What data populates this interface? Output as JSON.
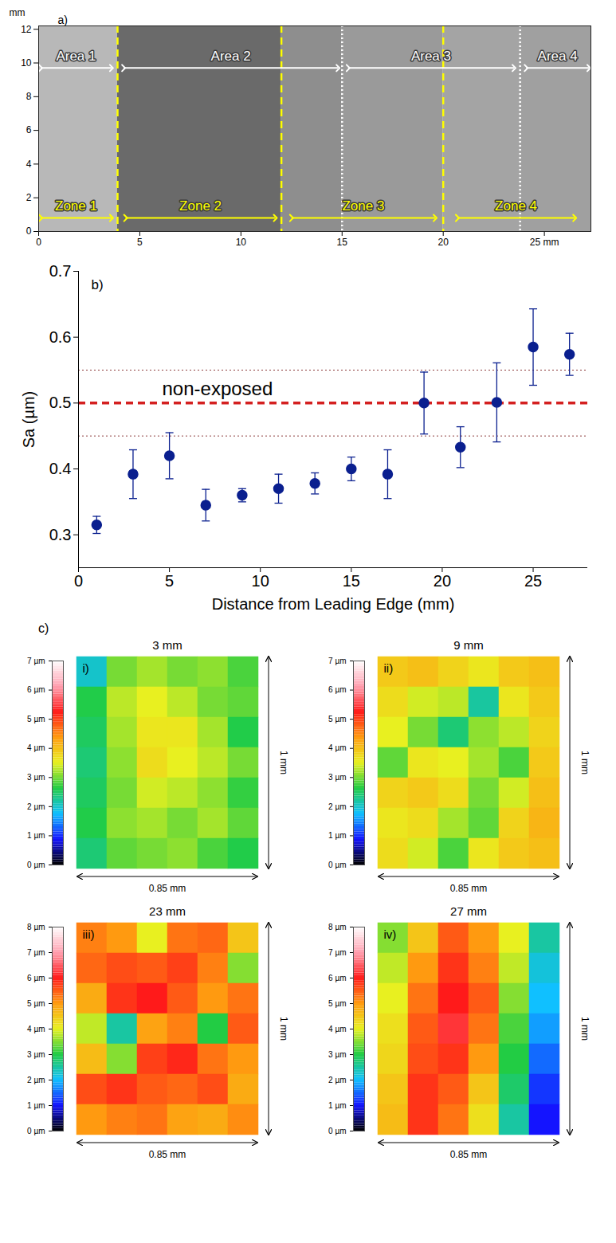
{
  "chart_data": [
    {
      "type": "overlay",
      "panel": "a)",
      "ylabel": "mm",
      "xlim": [
        0,
        27.3
      ],
      "ylim": [
        0,
        12.2
      ],
      "xticks": [
        0,
        5,
        10,
        15,
        20,
        {
          "value": 25,
          "label": "25 mm"
        }
      ],
      "yticks": [
        0,
        2,
        4,
        6,
        8,
        10,
        12
      ],
      "boundaries": [
        {
          "x": 3.9,
          "line_style": "dashed",
          "color": "#ffff00"
        },
        {
          "x": 12.0,
          "line_style": "dashed",
          "color": "#ffff00"
        },
        {
          "x": 15.0,
          "line_style": "dotted",
          "color": "#ffffff"
        },
        {
          "x": 20.0,
          "line_style": "dashed",
          "color": "#ffff00"
        },
        {
          "x": 23.8,
          "line_style": "dotted",
          "color": "#ffffff"
        }
      ],
      "spans": [
        {
          "name": "Area 1",
          "from": 0.1,
          "to": 3.6,
          "y": 9.7,
          "color": "#ffffff"
        },
        {
          "name": "Area 2",
          "from": 4.2,
          "to": 14.8,
          "y": 9.7,
          "color": "#ffffff"
        },
        {
          "name": "Area 3",
          "from": 15.3,
          "to": 23.5,
          "y": 9.7,
          "color": "#ffffff"
        },
        {
          "name": "Area 4",
          "from": 24.1,
          "to": 27.2,
          "y": 9.7,
          "color": "#ffffff"
        },
        {
          "name": "Zone 1",
          "from": 0.1,
          "to": 3.6,
          "y": 0.8,
          "color": "#ffff00"
        },
        {
          "name": "Zone 2",
          "from": 4.3,
          "to": 11.7,
          "y": 0.8,
          "color": "#ffff00"
        },
        {
          "name": "Zone 3",
          "from": 12.5,
          "to": 19.6,
          "y": 0.8,
          "color": "#ffff00"
        },
        {
          "name": "Zone 4",
          "from": 20.7,
          "to": 26.5,
          "y": 0.8,
          "color": "#ffff00"
        }
      ]
    },
    {
      "type": "scatter",
      "panel": "b)",
      "xlabel": "Distance from Leading Edge (mm)",
      "ylabel": "Sa (µm)",
      "xlim": [
        0,
        28
      ],
      "ylim": [
        0.25,
        0.7
      ],
      "xticks": [
        0,
        5,
        10,
        15,
        20,
        25
      ],
      "yticks": [
        0.3,
        0.4,
        0.5,
        0.6,
        0.7
      ],
      "x": [
        1,
        3,
        5,
        7,
        9,
        11,
        13,
        15,
        17,
        19,
        21,
        23,
        25,
        27
      ],
      "values": [
        0.315,
        0.392,
        0.42,
        0.345,
        0.36,
        0.37,
        0.378,
        0.4,
        0.392,
        0.5,
        0.433,
        0.501,
        0.585,
        0.574
      ],
      "errors": [
        0.013,
        0.037,
        0.035,
        0.024,
        0.01,
        0.022,
        0.016,
        0.018,
        0.037,
        0.047,
        0.031,
        0.06,
        0.058,
        0.032
      ],
      "color": "#0a1f8f",
      "marker": "circle",
      "reference_lines": [
        {
          "y": 0.5,
          "label": "non-exposed",
          "color": "#d42020",
          "line_style": "dashed"
        },
        {
          "y": 0.45,
          "color": "#8b3a3a",
          "line_style": "dotted"
        },
        {
          "y": 0.55,
          "color": "#8b3a3a",
          "line_style": "dotted"
        }
      ]
    },
    {
      "type": "heatmap",
      "group_label": "c)",
      "panel": "i)",
      "title": "3 mm",
      "height_label": "1 mm",
      "width_label": "0.85 mm",
      "tick_labels": false,
      "cells": [
        [
          2.0,
          3.0,
          3.2,
          3.0,
          3.1,
          2.8
        ],
        [
          2.6,
          3.3,
          3.5,
          3.3,
          3.0,
          2.9
        ],
        [
          2.5,
          3.2,
          3.6,
          3.6,
          3.2,
          2.6
        ],
        [
          2.4,
          3.1,
          3.7,
          3.5,
          3.3,
          3.0
        ],
        [
          2.5,
          3.0,
          3.4,
          3.3,
          3.1,
          2.7
        ],
        [
          2.6,
          3.1,
          3.2,
          3.0,
          3.2,
          2.9
        ],
        [
          2.4,
          2.9,
          3.0,
          3.1,
          2.8,
          2.6
        ]
      ],
      "colorbar": {
        "range": [
          0,
          7
        ],
        "ticks": [
          {
            "value": 0,
            "label": "0 µm"
          },
          {
            "value": 1,
            "label": "1 µm"
          },
          {
            "value": 2,
            "label": "2 µm"
          },
          {
            "value": 3,
            "label": "3 µm"
          },
          {
            "value": 4,
            "label": "4 µm"
          },
          {
            "value": 5,
            "label": "5 µm"
          },
          {
            "value": 6,
            "label": "6 µm"
          },
          {
            "value": 7,
            "label": "7 µm"
          }
        ]
      }
    },
    {
      "type": "heatmap",
      "panel": "ii)",
      "title": "9 mm",
      "height_label": "1 mm",
      "width_label": "0.85 mm",
      "tick_labels": false,
      "cells": [
        [
          3.9,
          4.0,
          3.8,
          3.6,
          3.9,
          4.0
        ],
        [
          3.7,
          3.4,
          3.3,
          2.2,
          3.6,
          3.9
        ],
        [
          3.5,
          3.0,
          2.4,
          3.1,
          3.3,
          3.8
        ],
        [
          2.9,
          3.6,
          3.5,
          3.2,
          2.8,
          3.9
        ],
        [
          3.8,
          3.9,
          3.7,
          3.0,
          3.4,
          4.0
        ],
        [
          3.6,
          3.7,
          3.2,
          2.9,
          3.8,
          4.1
        ],
        [
          3.7,
          3.4,
          2.8,
          3.6,
          3.9,
          4.0
        ]
      ],
      "colorbar": {
        "range": [
          0,
          7
        ],
        "ticks": [
          {
            "value": 0,
            "label": "0 µm"
          },
          {
            "value": 1,
            "label": "1 µm"
          },
          {
            "value": 2,
            "label": "2 µm"
          },
          {
            "value": 3,
            "label": "3 µm"
          },
          {
            "value": 4,
            "label": "4 µm"
          },
          {
            "value": 5,
            "label": "5 µm"
          },
          {
            "value": 6,
            "label": "6 µm"
          },
          {
            "value": 7,
            "label": "7 µm"
          }
        ]
      }
    },
    {
      "type": "heatmap",
      "panel": "iii)",
      "title": "23 mm",
      "height_label": "1 mm",
      "width_label": "0.85 mm",
      "tick_labels": false,
      "cells": [
        [
          5.2,
          5.0,
          4.0,
          5.3,
          5.4,
          4.5
        ],
        [
          5.4,
          5.6,
          5.5,
          5.7,
          5.2,
          3.5
        ],
        [
          4.8,
          5.8,
          6.0,
          5.5,
          5.0,
          5.3
        ],
        [
          3.8,
          2.5,
          4.9,
          5.2,
          3.0,
          5.5
        ],
        [
          4.6,
          3.5,
          5.7,
          5.9,
          5.3,
          5.0
        ],
        [
          5.6,
          5.8,
          5.5,
          5.4,
          5.6,
          4.8
        ],
        [
          5.0,
          5.2,
          5.3,
          4.9,
          4.8,
          5.1
        ]
      ],
      "colorbar": {
        "range": [
          0,
          8
        ],
        "ticks": [
          {
            "value": 0,
            "label": "0 µm"
          },
          {
            "value": 1,
            "label": "1 µm"
          },
          {
            "value": 2,
            "label": "2 µm"
          },
          {
            "value": 3,
            "label": "3 µm"
          },
          {
            "value": 4,
            "label": "4 µm"
          },
          {
            "value": 5,
            "label": "5 µm"
          },
          {
            "value": 6,
            "label": "6 µm"
          },
          {
            "value": 7,
            "label": "7 µm"
          },
          {
            "value": 8,
            "label": "8 µm"
          }
        ]
      }
    },
    {
      "type": "heatmap",
      "panel": "iv)",
      "title": "27 mm",
      "height_label": "1 mm",
      "width_label": "0.85 mm",
      "tick_labels": false,
      "cells": [
        [
          3.5,
          4.5,
          5.5,
          5.0,
          4.0,
          2.5
        ],
        [
          3.8,
          5.0,
          5.8,
          5.2,
          3.8,
          2.2
        ],
        [
          4.0,
          5.3,
          6.0,
          5.5,
          3.5,
          2.0
        ],
        [
          4.2,
          5.5,
          6.2,
          5.3,
          3.2,
          1.8
        ],
        [
          4.3,
          5.6,
          5.8,
          5.0,
          3.0,
          1.5
        ],
        [
          4.5,
          5.8,
          5.5,
          4.5,
          2.8,
          1.2
        ],
        [
          4.6,
          5.8,
          5.3,
          4.2,
          2.5,
          1.0
        ]
      ],
      "colorbar": {
        "range": [
          0,
          8
        ],
        "ticks": [
          {
            "value": 0,
            "label": "0 µm"
          },
          {
            "value": 1,
            "label": "1 µm"
          },
          {
            "value": 2,
            "label": "2 µm"
          },
          {
            "value": 3,
            "label": "3 µm"
          },
          {
            "value": 4,
            "label": "4 µm"
          },
          {
            "value": 5,
            "label": "5 µm"
          },
          {
            "value": 6,
            "label": "6 µm"
          },
          {
            "value": 7,
            "label": "7 µm"
          },
          {
            "value": 8,
            "label": "8 µm"
          }
        ]
      }
    }
  ]
}
